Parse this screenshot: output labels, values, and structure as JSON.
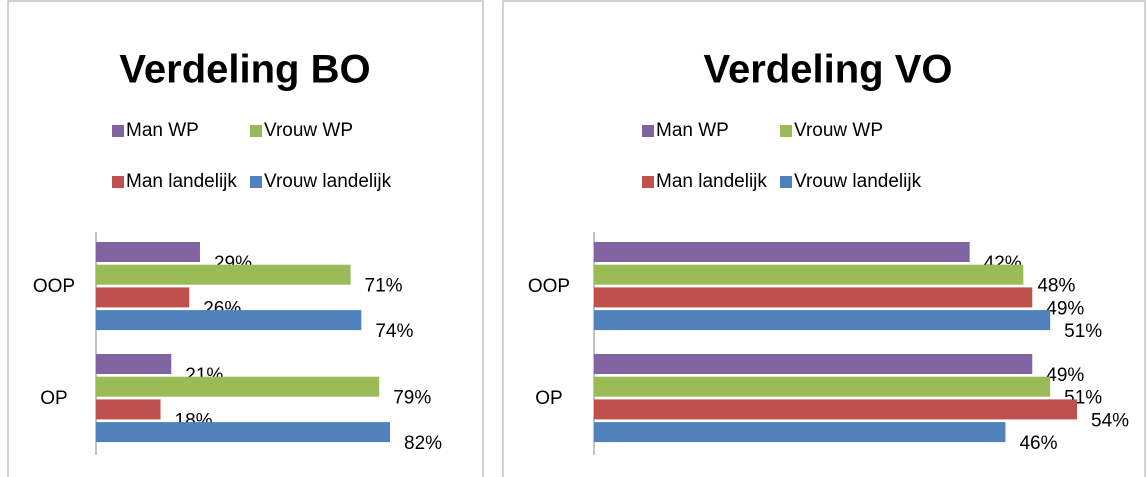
{
  "chart_data": [
    {
      "type": "bar",
      "orientation": "horizontal",
      "title": "Verdeling BO",
      "categories": [
        "OOP",
        "OP"
      ],
      "series": [
        {
          "name": "Man WP",
          "color": "#8064a2",
          "values": [
            29,
            21
          ],
          "value_labels": [
            "29%",
            "21%"
          ]
        },
        {
          "name": "Vrouw WP",
          "color": "#9bbb59",
          "values": [
            71,
            79
          ],
          "value_labels": [
            "71%",
            "79%"
          ]
        },
        {
          "name": "Man landelijk",
          "color": "#c0504d",
          "values": [
            26,
            18
          ],
          "value_labels": [
            "26%",
            "18%"
          ]
        },
        {
          "name": "Vrouw landelijk",
          "color": "#4f81bd",
          "values": [
            74,
            82
          ],
          "value_labels": [
            "74%",
            "82%"
          ]
        }
      ],
      "legend": "top"
    },
    {
      "type": "bar",
      "orientation": "horizontal",
      "title": "Verdeling VO",
      "categories": [
        "OOP",
        "OP"
      ],
      "series": [
        {
          "name": "Man WP",
          "color": "#8064a2",
          "values": [
            42,
            49
          ],
          "value_labels": [
            "42%",
            "49%"
          ]
        },
        {
          "name": "Vrouw WP",
          "color": "#9bbb59",
          "values": [
            48,
            51
          ],
          "value_labels": [
            "48%",
            "51%"
          ]
        },
        {
          "name": "Man landelijk",
          "color": "#c0504d",
          "values": [
            49,
            54
          ],
          "value_labels": [
            "49%",
            "54%"
          ]
        },
        {
          "name": "Vrouw landelijk",
          "color": "#4f81bd",
          "values": [
            51,
            46
          ],
          "value_labels": [
            "51%",
            "46%"
          ]
        }
      ],
      "legend": "top"
    }
  ]
}
